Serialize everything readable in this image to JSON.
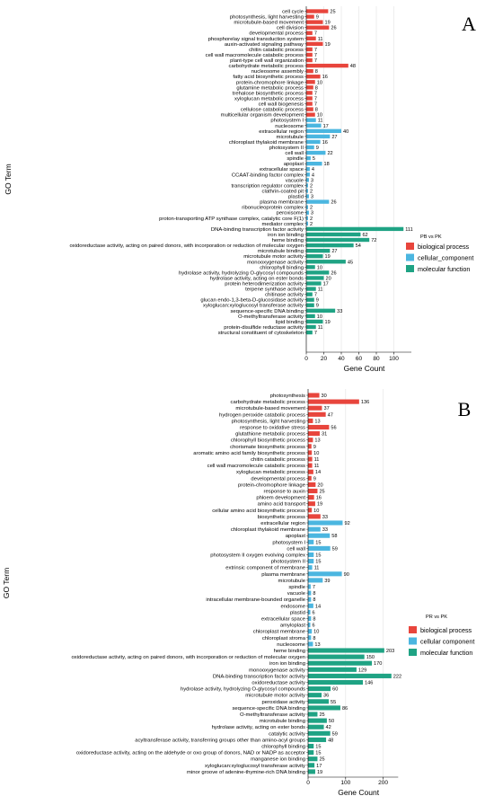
{
  "chart_data": [
    {
      "type": "bar",
      "orientation": "horizontal",
      "panel_label": "A",
      "xlabel": "Gene Count",
      "ylabel": "GO Term",
      "xlim": [
        0,
        120
      ],
      "xticks": [
        0,
        20,
        40,
        60,
        80,
        100
      ],
      "grid": true,
      "legend": {
        "title": "PB vs PK",
        "placement": "right",
        "entries": [
          {
            "name": "biological process",
            "color": "#e8453c"
          },
          {
            "name": "cellular_component",
            "color": "#4bb6e0"
          },
          {
            "name": "molecular function",
            "color": "#1fa384"
          }
        ]
      },
      "bars": [
        {
          "term": "cell cycle",
          "value": 25,
          "group": 0
        },
        {
          "term": "photosynthesis, light harvesting",
          "value": 9,
          "group": 0
        },
        {
          "term": "microtubule-based movement",
          "value": 19,
          "group": 0
        },
        {
          "term": "cell division",
          "value": 26,
          "group": 0
        },
        {
          "term": "developmental process",
          "value": 7,
          "group": 0
        },
        {
          "term": "phosphorelay signal transduction system",
          "value": 11,
          "group": 0
        },
        {
          "term": "auxin-activated signaling pathway",
          "value": 19,
          "group": 0
        },
        {
          "term": "chitin catabolic process",
          "value": 7,
          "group": 0
        },
        {
          "term": "cell wall macromolecule catabolic process",
          "value": 7,
          "group": 0
        },
        {
          "term": "plant-type cell wall organization",
          "value": 7,
          "group": 0
        },
        {
          "term": "carbohydrate metabolic process",
          "value": 48,
          "group": 0
        },
        {
          "term": "nucleosome assembly",
          "value": 8,
          "group": 0
        },
        {
          "term": "fatty acid biosynthetic process",
          "value": 16,
          "group": 0
        },
        {
          "term": "protein-chromophore linkage",
          "value": 10,
          "group": 0
        },
        {
          "term": "glutamine metabolic process",
          "value": 8,
          "group": 0
        },
        {
          "term": "trehalose biosynthetic process",
          "value": 7,
          "group": 0
        },
        {
          "term": "xyloglucan metabolic process",
          "value": 7,
          "group": 0
        },
        {
          "term": "cell wall biogenesis",
          "value": 7,
          "group": 0
        },
        {
          "term": "cellulose catabolic process",
          "value": 8,
          "group": 0
        },
        {
          "term": "multicellular organism development",
          "value": 10,
          "group": 0
        },
        {
          "term": "photosystem I",
          "value": 11,
          "group": 1
        },
        {
          "term": "nucleosome",
          "value": 17,
          "group": 1
        },
        {
          "term": "extracellular region",
          "value": 40,
          "group": 1
        },
        {
          "term": "microtubule",
          "value": 27,
          "group": 1
        },
        {
          "term": "chloroplast thylakoid membrane",
          "value": 16,
          "group": 1
        },
        {
          "term": "photosystem II",
          "value": 9,
          "group": 1
        },
        {
          "term": "cell wall",
          "value": 22,
          "group": 1
        },
        {
          "term": "spindle",
          "value": 5,
          "group": 1
        },
        {
          "term": "apoplast",
          "value": 18,
          "group": 1
        },
        {
          "term": "extracellular space",
          "value": 4,
          "group": 1
        },
        {
          "term": "CCAAT-binding factor complex",
          "value": 4,
          "group": 1
        },
        {
          "term": "vacuole",
          "value": 3,
          "group": 1
        },
        {
          "term": "transcription regulator complex",
          "value": 2,
          "group": 1
        },
        {
          "term": "clathrin-coated pit",
          "value": 2,
          "group": 1
        },
        {
          "term": "plastid",
          "value": 3,
          "group": 1
        },
        {
          "term": "plasma membrane",
          "value": 26,
          "group": 1
        },
        {
          "term": "ribonucleoprotein complex",
          "value": 2,
          "group": 1
        },
        {
          "term": "peroxisome",
          "value": 3,
          "group": 1
        },
        {
          "term": "proton-transporting ATP synthase complex, catalytic core F(1)",
          "value": 2,
          "group": 1
        },
        {
          "term": "mediator complex",
          "value": 2,
          "group": 1
        },
        {
          "term": "DNA-binding transcription factor activity",
          "value": 111,
          "group": 2
        },
        {
          "term": "iron ion binding",
          "value": 62,
          "group": 2
        },
        {
          "term": "heme binding",
          "value": 72,
          "group": 2
        },
        {
          "term": "oxidoreductase activity, acting on paired donors, with incorporation or reduction of molecular oxygen",
          "value": 54,
          "group": 2
        },
        {
          "term": "microtubule binding",
          "value": 27,
          "group": 2
        },
        {
          "term": "microtubule motor activity",
          "value": 19,
          "group": 2
        },
        {
          "term": "monooxygenase activity",
          "value": 45,
          "group": 2
        },
        {
          "term": "chlorophyll binding",
          "value": 10,
          "group": 2
        },
        {
          "term": "hydrolase activity, hydrolyzing O-glycosyl compounds",
          "value": 26,
          "group": 2
        },
        {
          "term": "hydrolase activity, acting on ester bonds",
          "value": 20,
          "group": 2
        },
        {
          "term": "protein heterodimerization activity",
          "value": 17,
          "group": 2
        },
        {
          "term": "terpene synthase activity",
          "value": 11,
          "group": 2
        },
        {
          "term": "chitinase activity",
          "value": 7,
          "group": 2
        },
        {
          "term": "glucan endo-1,3-beta-D-glucosidase activity",
          "value": 9,
          "group": 2
        },
        {
          "term": "xyloglucan:xyloglucosyl transferase activity",
          "value": 9,
          "group": 2
        },
        {
          "term": "sequence-specific DNA binding",
          "value": 33,
          "group": 2
        },
        {
          "term": "O-methyltransferase activity",
          "value": 10,
          "group": 2
        },
        {
          "term": "lipid binding",
          "value": 19,
          "group": 2
        },
        {
          "term": "protein-disulfide reductase activity",
          "value": 11,
          "group": 2
        },
        {
          "term": "structural constituent of cytoskeleton",
          "value": 7,
          "group": 2
        }
      ]
    },
    {
      "type": "bar",
      "orientation": "horizontal",
      "panel_label": "B",
      "xlabel": "Gene Count",
      "ylabel": "GO Term",
      "xlim": [
        0,
        240
      ],
      "xticks": [
        0,
        100,
        200
      ],
      "grid": true,
      "legend": {
        "title": "PR vs PK",
        "placement": "right",
        "entries": [
          {
            "name": "biological process",
            "color": "#e8453c"
          },
          {
            "name": "cellular component",
            "color": "#4bb6e0"
          },
          {
            "name": "molecular function",
            "color": "#1fa384"
          }
        ]
      },
      "bars": [
        {
          "term": "photosynthesis",
          "value": 30,
          "group": 0
        },
        {
          "term": "carbohydrate metabolic process",
          "value": 136,
          "group": 0
        },
        {
          "term": "microtubule-based movement",
          "value": 37,
          "group": 0
        },
        {
          "term": "hydrogen peroxide catabolic process",
          "value": 47,
          "group": 0
        },
        {
          "term": "photosynthesis, light harvesting",
          "value": 13,
          "group": 0
        },
        {
          "term": "response to oxidative stress",
          "value": 56,
          "group": 0
        },
        {
          "term": "glutathione metabolic process",
          "value": 31,
          "group": 0
        },
        {
          "term": "chlorophyll biosynthetic process",
          "value": 13,
          "group": 0
        },
        {
          "term": "chorismate biosynthetic process",
          "value": 9,
          "group": 0
        },
        {
          "term": "aromatic amino acid family biosynthetic process",
          "value": 10,
          "group": 0
        },
        {
          "term": "chitin catabolic process",
          "value": 11,
          "group": 0
        },
        {
          "term": "cell wall macromolecule catabolic process",
          "value": 11,
          "group": 0
        },
        {
          "term": "xyloglucan metabolic process",
          "value": 14,
          "group": 0
        },
        {
          "term": "developmental process",
          "value": 9,
          "group": 0
        },
        {
          "term": "protein-chromophore linkage",
          "value": 20,
          "group": 0
        },
        {
          "term": "response to auxin",
          "value": 25,
          "group": 0
        },
        {
          "term": "phloem development",
          "value": 16,
          "group": 0
        },
        {
          "term": "amino acid transport",
          "value": 19,
          "group": 0
        },
        {
          "term": "cellular amino acid biosynthetic process",
          "value": 10,
          "group": 0
        },
        {
          "term": "biosynthetic process",
          "value": 33,
          "group": 0
        },
        {
          "term": "extracellular region",
          "value": 92,
          "group": 1
        },
        {
          "term": "chloroplast thylakoid membrane",
          "value": 33,
          "group": 1
        },
        {
          "term": "apoplast",
          "value": 58,
          "group": 1
        },
        {
          "term": "photosystem I",
          "value": 15,
          "group": 1
        },
        {
          "term": "cell wall",
          "value": 59,
          "group": 1
        },
        {
          "term": "photosystem II oxygen evolving complex",
          "value": 15,
          "group": 1
        },
        {
          "term": "photosystem II",
          "value": 15,
          "group": 1
        },
        {
          "term": "extrinsic component of membrane",
          "value": 11,
          "group": 1
        },
        {
          "term": "plasma membrane",
          "value": 90,
          "group": 1
        },
        {
          "term": "microtubule",
          "value": 39,
          "group": 1
        },
        {
          "term": "spindle",
          "value": 7,
          "group": 1
        },
        {
          "term": "vacuole",
          "value": 8,
          "group": 1
        },
        {
          "term": "intracellular membrane-bounded organelle",
          "value": 8,
          "group": 1
        },
        {
          "term": "endosome",
          "value": 14,
          "group": 1
        },
        {
          "term": "plastid",
          "value": 6,
          "group": 1
        },
        {
          "term": "extracellular space",
          "value": 8,
          "group": 1
        },
        {
          "term": "amyloplast",
          "value": 6,
          "group": 1
        },
        {
          "term": "chloroplast membrane",
          "value": 10,
          "group": 1
        },
        {
          "term": "chloroplast stroma",
          "value": 8,
          "group": 1
        },
        {
          "term": "nucleosome",
          "value": 13,
          "group": 1
        },
        {
          "term": "heme binding",
          "value": 203,
          "group": 2
        },
        {
          "term": "oxidoreductase activity, acting on paired donors, with incorporation or reduction of molecular oxygen",
          "value": 150,
          "group": 2
        },
        {
          "term": "iron ion binding",
          "value": 170,
          "group": 2
        },
        {
          "term": "monooxygenase activity",
          "value": 129,
          "group": 2
        },
        {
          "term": "DNA-binding transcription factor activity",
          "value": 222,
          "group": 2
        },
        {
          "term": "oxidoreductase activity",
          "value": 146,
          "group": 2
        },
        {
          "term": "hydrolase activity, hydrolyzing O-glycosyl compounds",
          "value": 60,
          "group": 2
        },
        {
          "term": "microtubule motor activity",
          "value": 36,
          "group": 2
        },
        {
          "term": "peroxidase activity",
          "value": 55,
          "group": 2
        },
        {
          "term": "sequence-specific DNA binding",
          "value": 86,
          "group": 2
        },
        {
          "term": "O-methyltransferase activity",
          "value": 25,
          "group": 2
        },
        {
          "term": "microtubule binding",
          "value": 50,
          "group": 2
        },
        {
          "term": "hydrolase activity, acting on ester bonds",
          "value": 42,
          "group": 2
        },
        {
          "term": "catalytic activity",
          "value": 59,
          "group": 2
        },
        {
          "term": "acyltransferase activity, transferring groups other than amino-acyl groups",
          "value": 48,
          "group": 2
        },
        {
          "term": "chlorophyll binding",
          "value": 15,
          "group": 2
        },
        {
          "term": "oxidoreductase activity, acting on the aldehyde or oxo group of donors, NAD or NADP as acceptor",
          "value": 15,
          "group": 2
        },
        {
          "term": "manganese ion binding",
          "value": 25,
          "group": 2
        },
        {
          "term": "xyloglucan:xyloglucosyl transferase activity",
          "value": 17,
          "group": 2
        },
        {
          "term": "minor groove of adenine-thymine-rich DNA binding",
          "value": 19,
          "group": 2
        }
      ]
    }
  ]
}
